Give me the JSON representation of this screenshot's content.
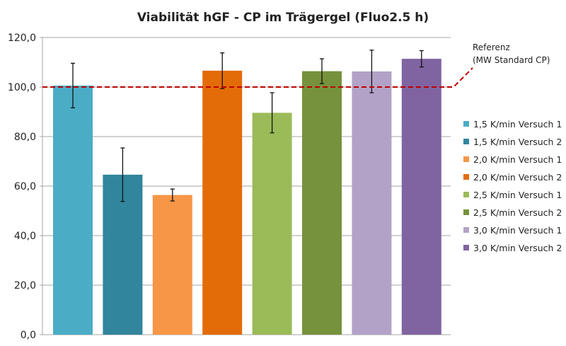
{
  "chart_data": {
    "type": "bar",
    "title": "Viabilität hGF - CP im Trägergel (Fluo2.5 h)",
    "xlabel": "",
    "ylabel": "",
    "ylim": [
      0,
      120
    ],
    "yticks": [
      "0,0",
      "20,0",
      "40,0",
      "60,0",
      "80,0",
      "100,0",
      "120,0"
    ],
    "ytick_values": [
      0,
      20,
      40,
      60,
      80,
      100,
      120
    ],
    "grid": true,
    "legend_position": "right",
    "series": [
      {
        "name": "1,5 K/min Versuch 1",
        "value": 100.6,
        "error": 9.0,
        "color": "#4bacc6"
      },
      {
        "name": "1,5 K/min Versuch 2",
        "value": 64.6,
        "error": 10.8,
        "color": "#31859c"
      },
      {
        "name": "2,0 K/min Versuch 1",
        "value": 56.4,
        "error": 2.4,
        "color": "#f79646"
      },
      {
        "name": "2,0 K/min Versuch 2",
        "value": 106.6,
        "error": 7.2,
        "color": "#e36c09"
      },
      {
        "name": "2,5 K/min Versuch 1",
        "value": 89.6,
        "error": 8.1,
        "color": "#9bbb59"
      },
      {
        "name": "2,5 K/min Versuch 2",
        "value": 106.4,
        "error": 5.0,
        "color": "#76923c"
      },
      {
        "name": "3,0 K/min Versuch 1",
        "value": 106.3,
        "error": 8.6,
        "color": "#b3a2c7"
      },
      {
        "name": "3,0 K/min Versuch 2",
        "value": 111.4,
        "error": 3.3,
        "color": "#8064a2"
      }
    ],
    "reference": {
      "value": 100,
      "label_line1": "Referenz",
      "label_line2": "(MW Standard CP)",
      "color": "#c00000"
    }
  }
}
